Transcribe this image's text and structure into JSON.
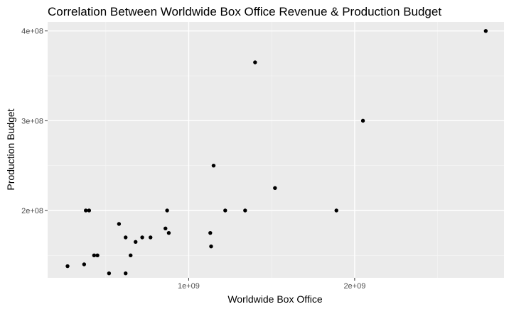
{
  "chart_data": {
    "type": "scatter",
    "title": "Correlation Between Worldwide Box Office Revenue & Production Budget",
    "xlabel": "Worldwide Box Office",
    "ylabel": "Production Budget",
    "xlim": [
      150000000,
      2900000000
    ],
    "ylim": [
      125000000,
      410000000
    ],
    "x_ticks": [
      {
        "value": 1000000000,
        "label": "1e+09"
      },
      {
        "value": 2000000000,
        "label": "2e+09"
      }
    ],
    "y_ticks": [
      {
        "value": 200000000,
        "label": "2e+08"
      },
      {
        "value": 300000000,
        "label": "3e+08"
      },
      {
        "value": 400000000,
        "label": "4e+08"
      }
    ],
    "x_minor": [
      500000000,
      1500000000,
      2500000000
    ],
    "y_minor": [
      150000000,
      250000000,
      350000000
    ],
    "grid": true,
    "background": "#ebebeb",
    "point_color": "#000000",
    "points": [
      {
        "x": 270000000,
        "y": 138000000
      },
      {
        "x": 370000000,
        "y": 140000000
      },
      {
        "x": 380000000,
        "y": 200000000
      },
      {
        "x": 400000000,
        "y": 200000000
      },
      {
        "x": 430000000,
        "y": 150000000
      },
      {
        "x": 450000000,
        "y": 150000000
      },
      {
        "x": 520000000,
        "y": 130000000
      },
      {
        "x": 580000000,
        "y": 185000000
      },
      {
        "x": 620000000,
        "y": 170000000
      },
      {
        "x": 620000000,
        "y": 130000000
      },
      {
        "x": 650000000,
        "y": 150000000
      },
      {
        "x": 680000000,
        "y": 165000000
      },
      {
        "x": 720000000,
        "y": 170000000
      },
      {
        "x": 770000000,
        "y": 170000000
      },
      {
        "x": 860000000,
        "y": 180000000
      },
      {
        "x": 870000000,
        "y": 200000000
      },
      {
        "x": 880000000,
        "y": 175000000
      },
      {
        "x": 1130000000,
        "y": 175000000
      },
      {
        "x": 1135000000,
        "y": 160000000
      },
      {
        "x": 1150000000,
        "y": 250000000
      },
      {
        "x": 1220000000,
        "y": 200000000
      },
      {
        "x": 1340000000,
        "y": 200000000
      },
      {
        "x": 1400000000,
        "y": 365000000
      },
      {
        "x": 1520000000,
        "y": 225000000
      },
      {
        "x": 1890000000,
        "y": 200000000
      },
      {
        "x": 2050000000,
        "y": 300000000
      },
      {
        "x": 2790000000,
        "y": 400000000
      }
    ]
  }
}
